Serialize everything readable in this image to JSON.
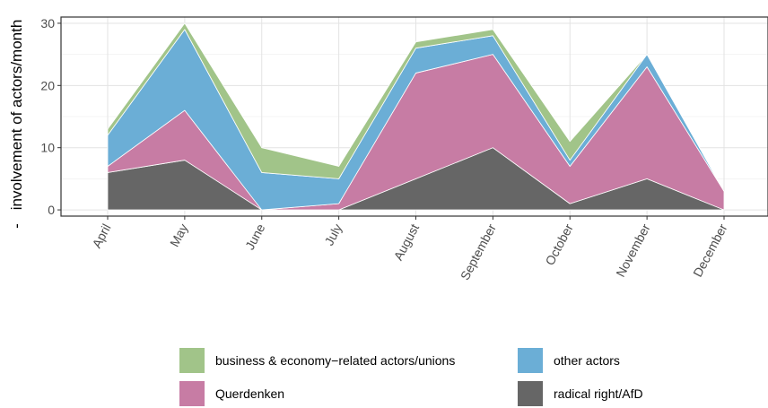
{
  "chart_data": {
    "type": "area",
    "stacked": true,
    "categories": [
      "April",
      "May",
      "June",
      "July",
      "August",
      "September",
      "October",
      "November",
      "December"
    ],
    "ylabel": "involvement of actors/month",
    "ylabel_prefix": "-",
    "xlabel": "",
    "ylim": [
      -1,
      31
    ],
    "yticks": [
      0,
      10,
      20,
      30
    ],
    "grid": true,
    "legend_position": "bottom",
    "series": [
      {
        "name": "radical right/AfD",
        "color": "#666666",
        "values": [
          6,
          8,
          0,
          0,
          5,
          10,
          1,
          5,
          0
        ]
      },
      {
        "name": "Querdenken",
        "color": "#C77CA4",
        "values": [
          1,
          8,
          0,
          1,
          17,
          15,
          6,
          18,
          3
        ]
      },
      {
        "name": "other actors",
        "color": "#6BAED6",
        "values": [
          5,
          13,
          6,
          4,
          4,
          3,
          1,
          2,
          0
        ]
      },
      {
        "name": "business & economy−related actors/unions",
        "color": "#A1C489",
        "values": [
          1,
          1,
          4,
          2,
          1,
          1,
          3,
          0,
          0
        ]
      }
    ],
    "legend_order": [
      "business & economy−related actors/unions",
      "other actors",
      "Querdenken",
      "radical right/AfD"
    ]
  }
}
